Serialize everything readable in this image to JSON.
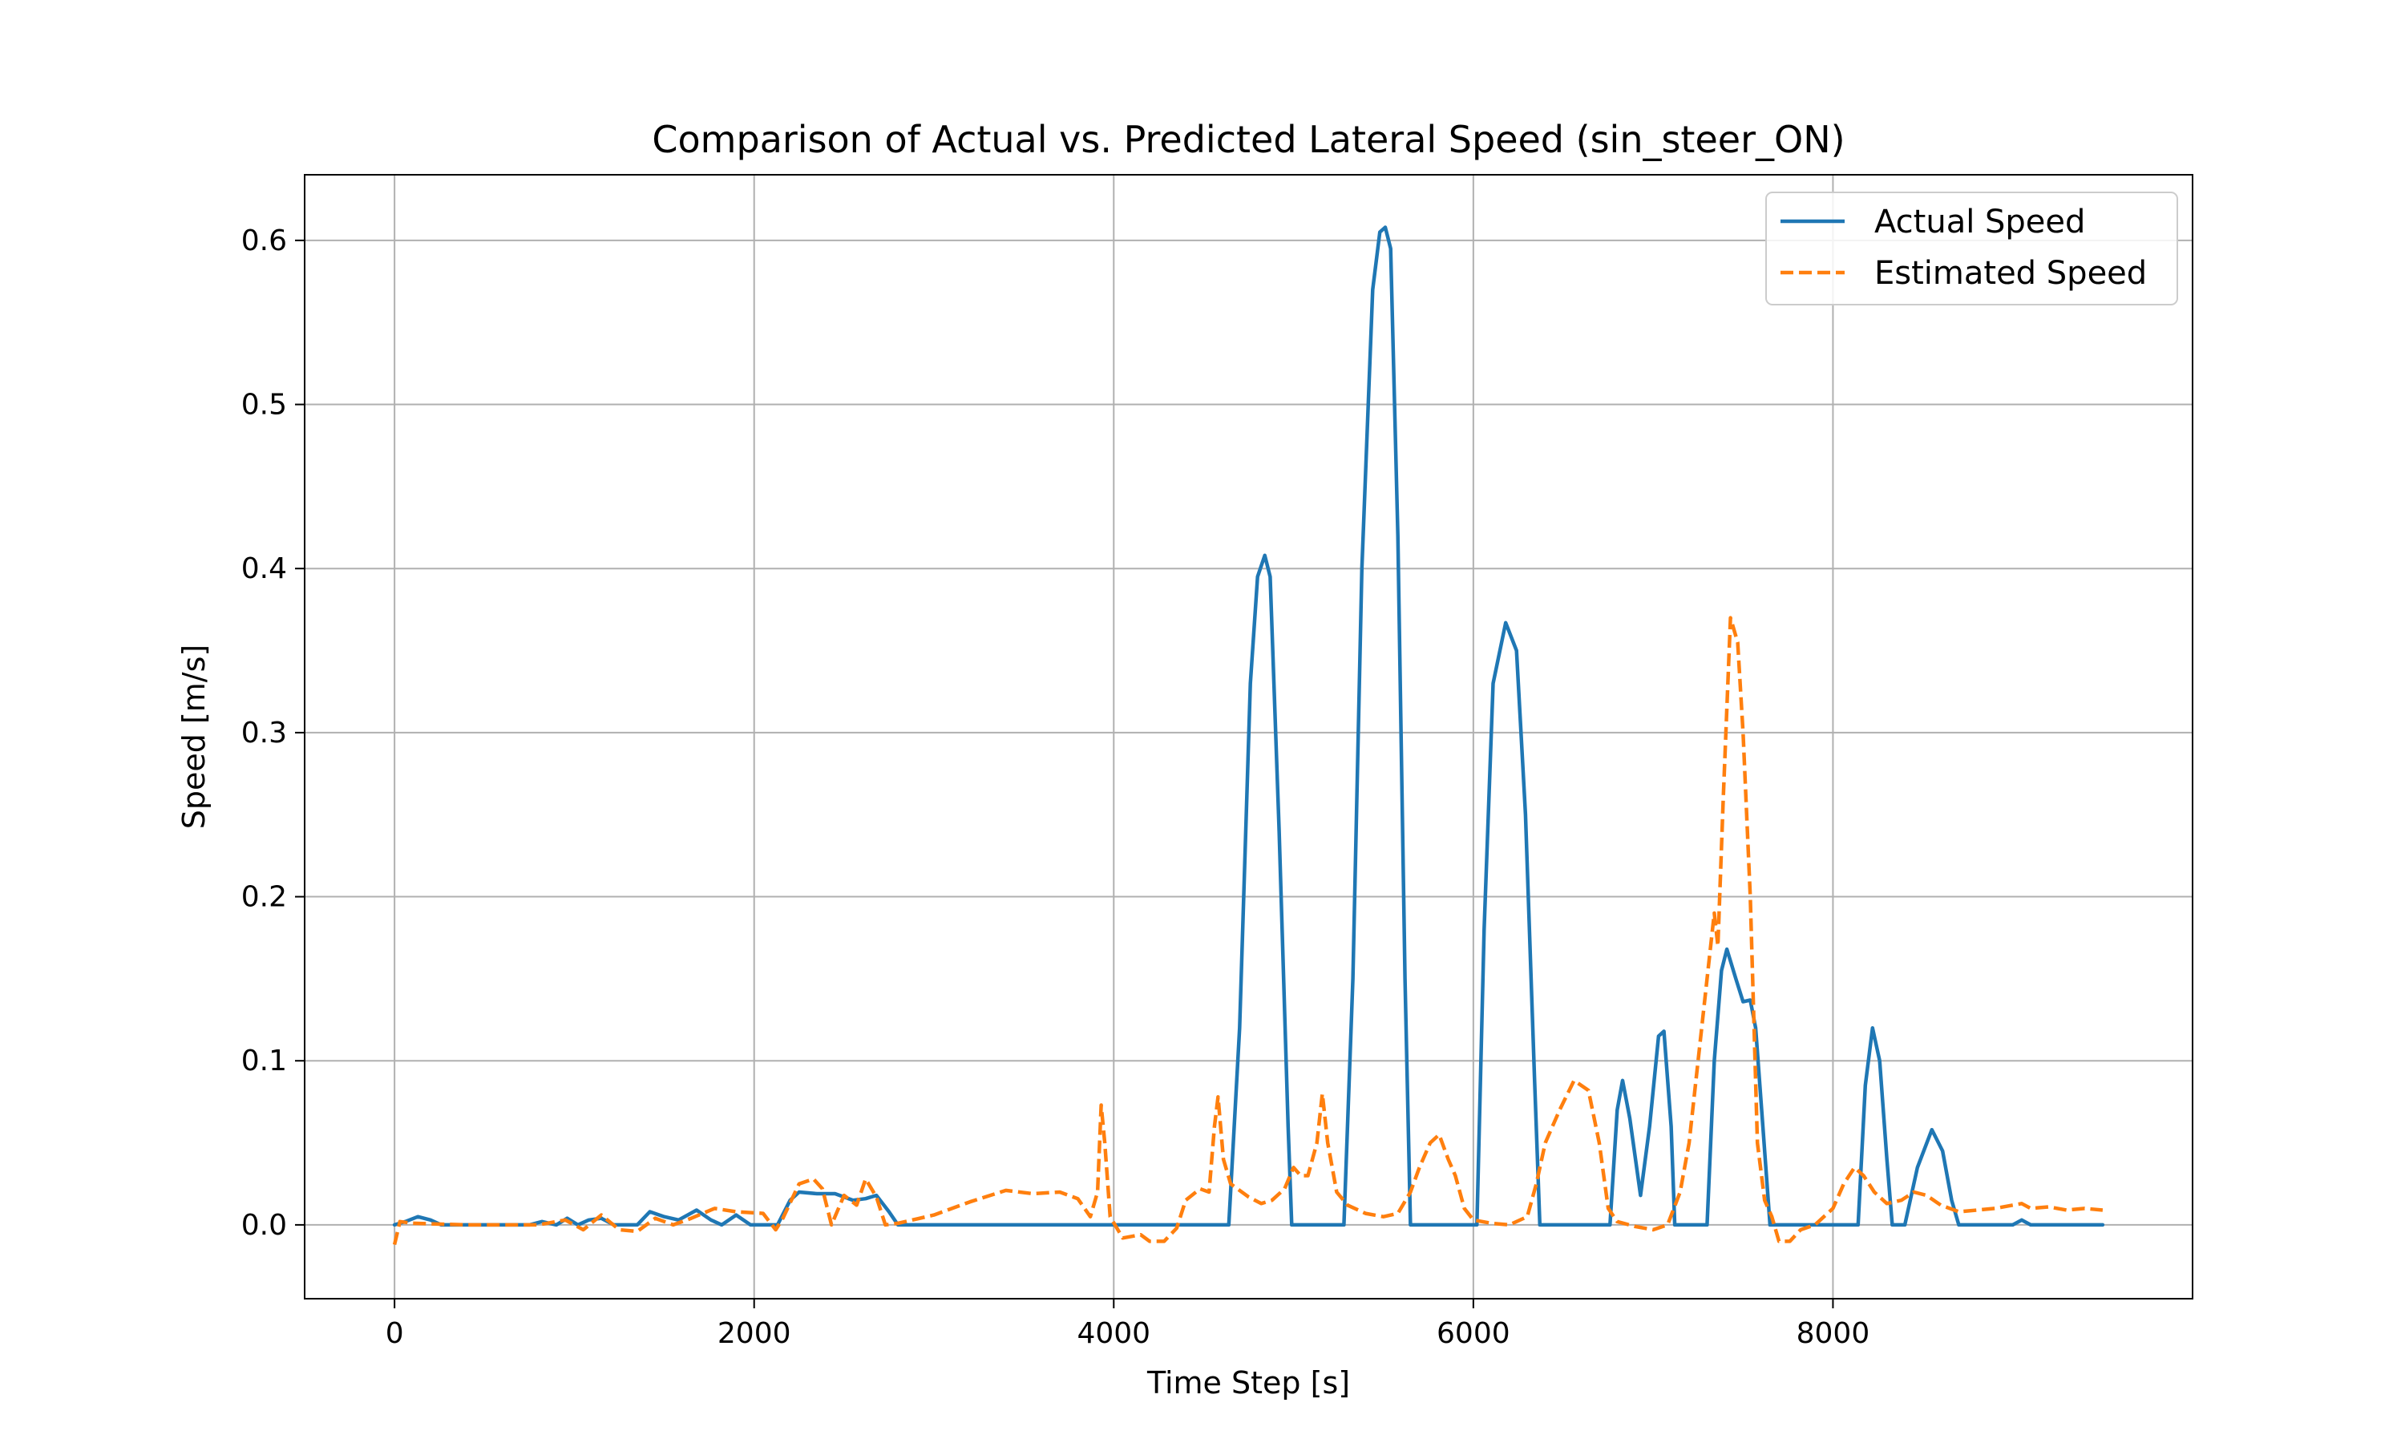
{
  "chart_data": {
    "type": "line",
    "title": "Comparison of Actual vs. Predicted Lateral Speed (sin_steer_ON)",
    "xlabel": "Time Step [s]",
    "ylabel": "Speed [m/s]",
    "xlim": [
      -500,
      10000
    ],
    "ylim": [
      -0.045,
      0.64
    ],
    "xticks": [
      0,
      2000,
      4000,
      6000,
      8000
    ],
    "xtick_labels": [
      "0",
      "2000",
      "4000",
      "6000",
      "8000"
    ],
    "yticks": [
      0.0,
      0.1,
      0.2,
      0.3,
      0.4,
      0.5,
      0.6
    ],
    "ytick_labels": [
      "0.0",
      "0.1",
      "0.2",
      "0.3",
      "0.4",
      "0.5",
      "0.6"
    ],
    "grid": true,
    "legend_position": "top-right",
    "series": [
      {
        "name": "Actual Speed",
        "color": "#1f77b4",
        "style": "solid",
        "points": [
          [
            0,
            0
          ],
          [
            60,
            0.002
          ],
          [
            130,
            0.005
          ],
          [
            200,
            0.003
          ],
          [
            260,
            0
          ],
          [
            750,
            0
          ],
          [
            820,
            0.002
          ],
          [
            900,
            0
          ],
          [
            960,
            0.004
          ],
          [
            1020,
            0
          ],
          [
            1080,
            0.003
          ],
          [
            1150,
            0.004
          ],
          [
            1220,
            0
          ],
          [
            1350,
            0
          ],
          [
            1420,
            0.008
          ],
          [
            1500,
            0.005
          ],
          [
            1580,
            0.003
          ],
          [
            1680,
            0.009
          ],
          [
            1760,
            0.003
          ],
          [
            1820,
            0
          ],
          [
            1900,
            0.006
          ],
          [
            1980,
            0
          ],
          [
            2130,
            0
          ],
          [
            2200,
            0.015
          ],
          [
            2250,
            0.02
          ],
          [
            2350,
            0.019
          ],
          [
            2450,
            0.019
          ],
          [
            2550,
            0.015
          ],
          [
            2620,
            0.016
          ],
          [
            2680,
            0.018
          ],
          [
            2750,
            0.008
          ],
          [
            2800,
            0
          ],
          [
            4640,
            0
          ],
          [
            4700,
            0.12
          ],
          [
            4760,
            0.33
          ],
          [
            4800,
            0.395
          ],
          [
            4840,
            0.408
          ],
          [
            4870,
            0.395
          ],
          [
            4920,
            0.24
          ],
          [
            4970,
            0.06
          ],
          [
            4990,
            0
          ],
          [
            5280,
            0
          ],
          [
            5330,
            0.15
          ],
          [
            5380,
            0.4
          ],
          [
            5440,
            0.57
          ],
          [
            5480,
            0.605
          ],
          [
            5510,
            0.608
          ],
          [
            5540,
            0.595
          ],
          [
            5580,
            0.42
          ],
          [
            5620,
            0.15
          ],
          [
            5650,
            0
          ],
          [
            6020,
            0
          ],
          [
            6060,
            0.18
          ],
          [
            6110,
            0.33
          ],
          [
            6180,
            0.367
          ],
          [
            6240,
            0.35
          ],
          [
            6290,
            0.25
          ],
          [
            6340,
            0.09
          ],
          [
            6370,
            0
          ],
          [
            6760,
            0
          ],
          [
            6800,
            0.07
          ],
          [
            6830,
            0.088
          ],
          [
            6870,
            0.065
          ],
          [
            6930,
            0.018
          ],
          [
            6980,
            0.06
          ],
          [
            7030,
            0.115
          ],
          [
            7060,
            0.118
          ],
          [
            7100,
            0.06
          ],
          [
            7120,
            0
          ],
          [
            7300,
            0
          ],
          [
            7340,
            0.1
          ],
          [
            7380,
            0.155
          ],
          [
            7410,
            0.168
          ],
          [
            7460,
            0.15
          ],
          [
            7500,
            0.136
          ],
          [
            7540,
            0.137
          ],
          [
            7570,
            0.12
          ],
          [
            7610,
            0.06
          ],
          [
            7650,
            0
          ],
          [
            8140,
            0
          ],
          [
            8180,
            0.085
          ],
          [
            8220,
            0.12
          ],
          [
            8260,
            0.1
          ],
          [
            8300,
            0.04
          ],
          [
            8330,
            0
          ],
          [
            8400,
            0
          ],
          [
            8470,
            0.035
          ],
          [
            8550,
            0.058
          ],
          [
            8610,
            0.045
          ],
          [
            8660,
            0.015
          ],
          [
            8700,
            0
          ],
          [
            9000,
            0
          ],
          [
            9050,
            0.003
          ],
          [
            9100,
            0
          ],
          [
            9500,
            0
          ]
        ]
      },
      {
        "name": "Estimated Speed",
        "color": "#ff7f0e",
        "style": "dashed",
        "points": [
          [
            0,
            -0.012
          ],
          [
            30,
            0.002
          ],
          [
            100,
            0.001
          ],
          [
            400,
            0
          ],
          [
            800,
            0
          ],
          [
            950,
            0.003
          ],
          [
            1050,
            -0.003
          ],
          [
            1150,
            0.006
          ],
          [
            1250,
            -0.003
          ],
          [
            1350,
            -0.004
          ],
          [
            1450,
            0.004
          ],
          [
            1550,
            0
          ],
          [
            1650,
            0.004
          ],
          [
            1780,
            0.01
          ],
          [
            1900,
            0.008
          ],
          [
            2050,
            0.007
          ],
          [
            2120,
            -0.003
          ],
          [
            2160,
            0.004
          ],
          [
            2250,
            0.025
          ],
          [
            2330,
            0.028
          ],
          [
            2380,
            0.022
          ],
          [
            2430,
            0
          ],
          [
            2500,
            0.018
          ],
          [
            2570,
            0.012
          ],
          [
            2620,
            0.028
          ],
          [
            2680,
            0.017
          ],
          [
            2730,
            0
          ],
          [
            2800,
            0.001
          ],
          [
            3000,
            0.006
          ],
          [
            3200,
            0.014
          ],
          [
            3400,
            0.021
          ],
          [
            3550,
            0.019
          ],
          [
            3700,
            0.02
          ],
          [
            3800,
            0.016
          ],
          [
            3870,
            0.005
          ],
          [
            3910,
            0.02
          ],
          [
            3930,
            0.073
          ],
          [
            3950,
            0.05
          ],
          [
            3980,
            0.005
          ],
          [
            4050,
            -0.008
          ],
          [
            4150,
            -0.006
          ],
          [
            4200,
            -0.01
          ],
          [
            4280,
            -0.01
          ],
          [
            4350,
            -0.002
          ],
          [
            4400,
            0.015
          ],
          [
            4480,
            0.022
          ],
          [
            4530,
            0.02
          ],
          [
            4560,
            0.06
          ],
          [
            4580,
            0.078
          ],
          [
            4610,
            0.04
          ],
          [
            4650,
            0.025
          ],
          [
            4750,
            0.017
          ],
          [
            4820,
            0.013
          ],
          [
            4880,
            0.015
          ],
          [
            4950,
            0.022
          ],
          [
            5000,
            0.035
          ],
          [
            5040,
            0.03
          ],
          [
            5080,
            0.03
          ],
          [
            5130,
            0.05
          ],
          [
            5160,
            0.08
          ],
          [
            5190,
            0.05
          ],
          [
            5240,
            0.02
          ],
          [
            5300,
            0.012
          ],
          [
            5400,
            0.007
          ],
          [
            5500,
            0.005
          ],
          [
            5580,
            0.007
          ],
          [
            5650,
            0.02
          ],
          [
            5700,
            0.035
          ],
          [
            5760,
            0.05
          ],
          [
            5810,
            0.055
          ],
          [
            5860,
            0.04
          ],
          [
            5900,
            0.03
          ],
          [
            5950,
            0.01
          ],
          [
            6000,
            0.003
          ],
          [
            6100,
            0.001
          ],
          [
            6200,
            0
          ],
          [
            6300,
            0.005
          ],
          [
            6350,
            0.025
          ],
          [
            6400,
            0.05
          ],
          [
            6480,
            0.07
          ],
          [
            6560,
            0.088
          ],
          [
            6640,
            0.082
          ],
          [
            6700,
            0.05
          ],
          [
            6750,
            0.01
          ],
          [
            6800,
            0.002
          ],
          [
            6900,
            -0.001
          ],
          [
            7000,
            -0.003
          ],
          [
            7080,
            0
          ],
          [
            7150,
            0.02
          ],
          [
            7200,
            0.05
          ],
          [
            7250,
            0.1
          ],
          [
            7300,
            0.15
          ],
          [
            7340,
            0.19
          ],
          [
            7360,
            0.17
          ],
          [
            7390,
            0.26
          ],
          [
            7430,
            0.37
          ],
          [
            7470,
            0.355
          ],
          [
            7500,
            0.3
          ],
          [
            7540,
            0.2
          ],
          [
            7580,
            0.05
          ],
          [
            7620,
            0.015
          ],
          [
            7660,
            0.005
          ],
          [
            7700,
            -0.01
          ],
          [
            7760,
            -0.01
          ],
          [
            7820,
            -0.003
          ],
          [
            7900,
            0
          ],
          [
            8000,
            0.01
          ],
          [
            8060,
            0.025
          ],
          [
            8120,
            0.035
          ],
          [
            8170,
            0.03
          ],
          [
            8230,
            0.02
          ],
          [
            8300,
            0.013
          ],
          [
            8380,
            0.015
          ],
          [
            8450,
            0.02
          ],
          [
            8520,
            0.018
          ],
          [
            8600,
            0.012
          ],
          [
            8700,
            0.008
          ],
          [
            8800,
            0.009
          ],
          [
            8900,
            0.01
          ],
          [
            9000,
            0.012
          ],
          [
            9050,
            0.013
          ],
          [
            9100,
            0.01
          ],
          [
            9200,
            0.011
          ],
          [
            9300,
            0.009
          ],
          [
            9400,
            0.01
          ],
          [
            9500,
            0.009
          ]
        ]
      }
    ]
  }
}
